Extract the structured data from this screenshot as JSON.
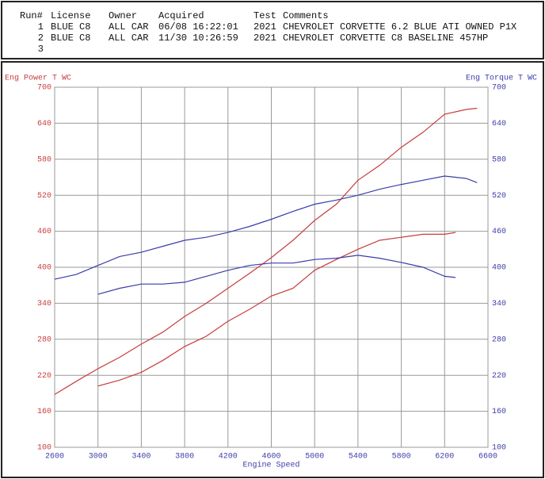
{
  "header": {
    "columns": [
      "Run#",
      "License",
      "Owner",
      "Acquired",
      "Test",
      "Comments"
    ],
    "rows": [
      [
        "1",
        "BLUE C8",
        "ALL CAR",
        "06/08 16:22:01",
        "2021",
        "CHEVROLET CORVETTE 6.2 BLUE ATI OWNED P1X"
      ],
      [
        "2",
        "BLUE C8",
        "ALL CAR",
        "11/30 10:26:59",
        "2021",
        "CHEVROLET CORVETTE C8 BASELINE 457HP"
      ],
      [
        "3"
      ]
    ]
  },
  "chart_data": {
    "type": "line",
    "ylabel": "Eng Power T WC",
    "y2label": "Eng Torque T WC",
    "xlabel": "Engine Speed",
    "xlim": [
      2600,
      6600
    ],
    "xticks": [
      2600,
      3000,
      3400,
      3800,
      4200,
      4600,
      5000,
      5400,
      5800,
      6200,
      6600
    ],
    "ylim": [
      100,
      700
    ],
    "yticks": [
      100,
      160,
      220,
      280,
      340,
      400,
      460,
      520,
      580,
      640,
      700
    ],
    "y2lim": [
      100,
      700
    ],
    "y2ticks": [
      100,
      160,
      220,
      280,
      340,
      400,
      460,
      520,
      580,
      640,
      700
    ],
    "grid": true,
    "ycolor": "#c83c3c",
    "y2color": "#3c3caa",
    "series": [
      {
        "color": "#c83c3c",
        "axis": "y",
        "x": [
          2600,
          2800,
          3000,
          3200,
          3400,
          3600,
          3800,
          4000,
          4200,
          4400,
          4600,
          4800,
          5000,
          5200,
          5400,
          5600,
          5800,
          6000,
          6200,
          6400,
          6500
        ],
        "values": [
          188,
          210,
          231,
          250,
          272,
          292,
          318,
          340,
          365,
          390,
          416,
          445,
          478,
          505,
          545,
          570,
          600,
          625,
          655,
          663,
          665
        ]
      },
      {
        "color": "#3c3caa",
        "axis": "y2",
        "x": [
          2600,
          2800,
          3000,
          3200,
          3400,
          3600,
          3800,
          4000,
          4200,
          4400,
          4600,
          4800,
          5000,
          5200,
          5400,
          5600,
          5800,
          6000,
          6200,
          6400,
          6500
        ],
        "values": [
          380,
          388,
          403,
          418,
          425,
          435,
          445,
          450,
          458,
          468,
          480,
          493,
          505,
          512,
          520,
          530,
          538,
          545,
          552,
          548,
          541
        ]
      },
      {
        "color": "#c83c3c",
        "axis": "y",
        "x": [
          3000,
          3200,
          3400,
          3600,
          3800,
          4000,
          4200,
          4400,
          4600,
          4800,
          5000,
          5200,
          5400,
          5600,
          5800,
          6000,
          6200,
          6300
        ],
        "values": [
          202,
          212,
          225,
          245,
          268,
          285,
          310,
          330,
          352,
          365,
          395,
          413,
          430,
          445,
          450,
          455,
          455,
          458
        ]
      },
      {
        "color": "#3c3caa",
        "axis": "y2",
        "x": [
          3000,
          3200,
          3400,
          3600,
          3800,
          4000,
          4200,
          4400,
          4600,
          4800,
          5000,
          5200,
          5400,
          5600,
          5800,
          6000,
          6200,
          6300
        ],
        "values": [
          355,
          365,
          372,
          372,
          375,
          385,
          395,
          403,
          407,
          407,
          413,
          415,
          420,
          415,
          408,
          400,
          385,
          383
        ]
      }
    ]
  }
}
